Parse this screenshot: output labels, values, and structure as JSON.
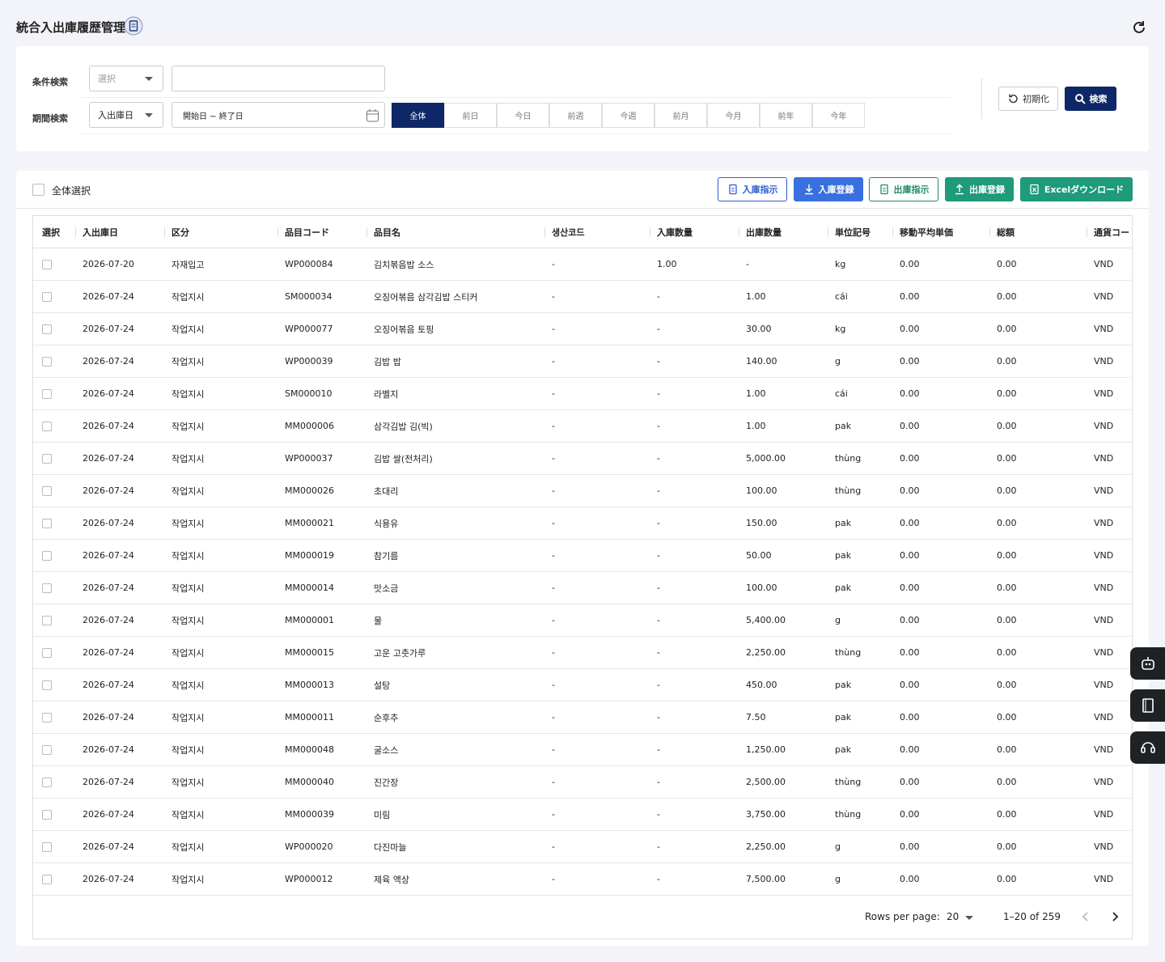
{
  "header": {
    "title": "統合入出庫履歴管理"
  },
  "filters": {
    "condition_label": "条件検索",
    "condition_select": "選択",
    "period_label": "期間検索",
    "period_select": "入出庫日",
    "date_range": "開始日 ~ 終了日",
    "period_tabs": [
      "全体",
      "前日",
      "今日",
      "前週",
      "今週",
      "前月",
      "今月",
      "前年",
      "今年"
    ],
    "reset": "初期化",
    "search": "検索"
  },
  "toolbar": {
    "select_all": "全体選択",
    "buttons": [
      "入庫指示",
      "入庫登録",
      "出庫指示",
      "出庫登録",
      "Excelダウンロード"
    ]
  },
  "table": {
    "columns": [
      "選択",
      "入出庫日",
      "区分",
      "品目コード",
      "品目名",
      "생산코드",
      "入庫数量",
      "出庫数量",
      "単位記号",
      "移動平均単価",
      "総額",
      "通貨コード"
    ],
    "rows": [
      [
        "2026-07-20",
        "자재입고",
        "WP000084",
        "김치볶음밥 소스",
        "-",
        "1.00",
        "-",
        "kg",
        "0.00",
        "0.00",
        "VND"
      ],
      [
        "2026-07-24",
        "작업지시",
        "SM000034",
        "오징어볶음 삼각김밥 스티커",
        "-",
        "-",
        "1.00",
        "cái",
        "0.00",
        "0.00",
        "VND"
      ],
      [
        "2026-07-24",
        "작업지시",
        "WP000077",
        "오징어볶음 토핑",
        "-",
        "-",
        "30.00",
        "kg",
        "0.00",
        "0.00",
        "VND"
      ],
      [
        "2026-07-24",
        "작업지시",
        "WP000039",
        "김밥 밥",
        "-",
        "-",
        "140.00",
        "g",
        "0.00",
        "0.00",
        "VND"
      ],
      [
        "2026-07-24",
        "작업지시",
        "SM000010",
        "라벨지",
        "-",
        "-",
        "1.00",
        "cái",
        "0.00",
        "0.00",
        "VND"
      ],
      [
        "2026-07-24",
        "작업지시",
        "MM000006",
        "삼각김밥 김(빅)",
        "-",
        "-",
        "1.00",
        "pak",
        "0.00",
        "0.00",
        "VND"
      ],
      [
        "2026-07-24",
        "작업지시",
        "WP000037",
        "김밥 쌀(전처리)",
        "-",
        "-",
        "5,000.00",
        "thùng",
        "0.00",
        "0.00",
        "VND"
      ],
      [
        "2026-07-24",
        "작업지시",
        "MM000026",
        "초대리",
        "-",
        "-",
        "100.00",
        "thùng",
        "0.00",
        "0.00",
        "VND"
      ],
      [
        "2026-07-24",
        "작업지시",
        "MM000021",
        "식용유",
        "-",
        "-",
        "150.00",
        "pak",
        "0.00",
        "0.00",
        "VND"
      ],
      [
        "2026-07-24",
        "작업지시",
        "MM000019",
        "참기름",
        "-",
        "-",
        "50.00",
        "pak",
        "0.00",
        "0.00",
        "VND"
      ],
      [
        "2026-07-24",
        "작업지시",
        "MM000014",
        "맛소금",
        "-",
        "-",
        "100.00",
        "pak",
        "0.00",
        "0.00",
        "VND"
      ],
      [
        "2026-07-24",
        "작업지시",
        "MM000001",
        "물",
        "-",
        "-",
        "5,400.00",
        "g",
        "0.00",
        "0.00",
        "VND"
      ],
      [
        "2026-07-24",
        "작업지시",
        "MM000015",
        "고운 고춧가루",
        "-",
        "-",
        "2,250.00",
        "thùng",
        "0.00",
        "0.00",
        "VND"
      ],
      [
        "2026-07-24",
        "작업지시",
        "MM000013",
        "설탕",
        "-",
        "-",
        "450.00",
        "pak",
        "0.00",
        "0.00",
        "VND"
      ],
      [
        "2026-07-24",
        "작업지시",
        "MM000011",
        "순후추",
        "-",
        "-",
        "7.50",
        "pak",
        "0.00",
        "0.00",
        "VND"
      ],
      [
        "2026-07-24",
        "작업지시",
        "MM000048",
        "굴소스",
        "-",
        "-",
        "1,250.00",
        "pak",
        "0.00",
        "0.00",
        "VND"
      ],
      [
        "2026-07-24",
        "작업지시",
        "MM000040",
        "진간장",
        "-",
        "-",
        "2,500.00",
        "thùng",
        "0.00",
        "0.00",
        "VND"
      ],
      [
        "2026-07-24",
        "작업지시",
        "MM000039",
        "미림",
        "-",
        "-",
        "3,750.00",
        "thùng",
        "0.00",
        "0.00",
        "VND"
      ],
      [
        "2026-07-24",
        "작업지시",
        "WP000020",
        "다진마늘",
        "-",
        "-",
        "2,250.00",
        "g",
        "0.00",
        "0.00",
        "VND"
      ],
      [
        "2026-07-24",
        "작업지시",
        "WP000012",
        "제육 액상",
        "-",
        "-",
        "7,500.00",
        "g",
        "0.00",
        "0.00",
        "VND"
      ]
    ]
  },
  "pagination": {
    "rows_per_page_label": "Rows per page:",
    "rows_per_page": "20",
    "range": "1–20 of 259"
  }
}
